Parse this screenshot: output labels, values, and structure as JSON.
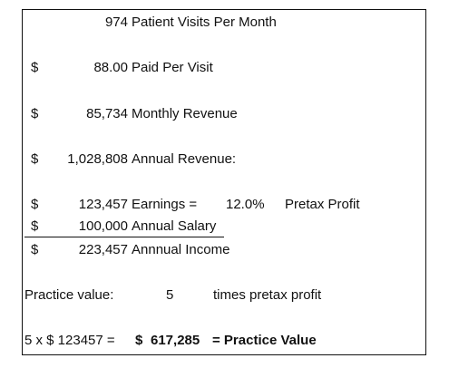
{
  "rows": {
    "visits": {
      "number": "974",
      "label": "Patient Visits Per Month"
    },
    "paid": {
      "currency": "$",
      "number": "88.00",
      "label": "Paid Per Visit"
    },
    "monthly": {
      "currency": "$",
      "number": "85,734",
      "label": "Monthly Revenue"
    },
    "annual": {
      "currency": "$",
      "number": "1,028,808",
      "label": "Annual Revenue:"
    },
    "earnings": {
      "currency": "$",
      "number": "123,457",
      "label": "Earnings =",
      "percent": "12.0%",
      "note": "Pretax Profit"
    },
    "salary": {
      "currency": "$",
      "number": "100,000",
      "label": "Annual Salary"
    },
    "income": {
      "currency": "$",
      "number": "223,457",
      "label": "Annnual Income"
    },
    "practice": {
      "label": "Practice value:",
      "multiplier": "5",
      "note": "times pretax profit"
    },
    "formula": {
      "expression": "5 x $  123457 =",
      "currency": "$",
      "value": "617,285",
      "label": "= Practice Value"
    }
  }
}
